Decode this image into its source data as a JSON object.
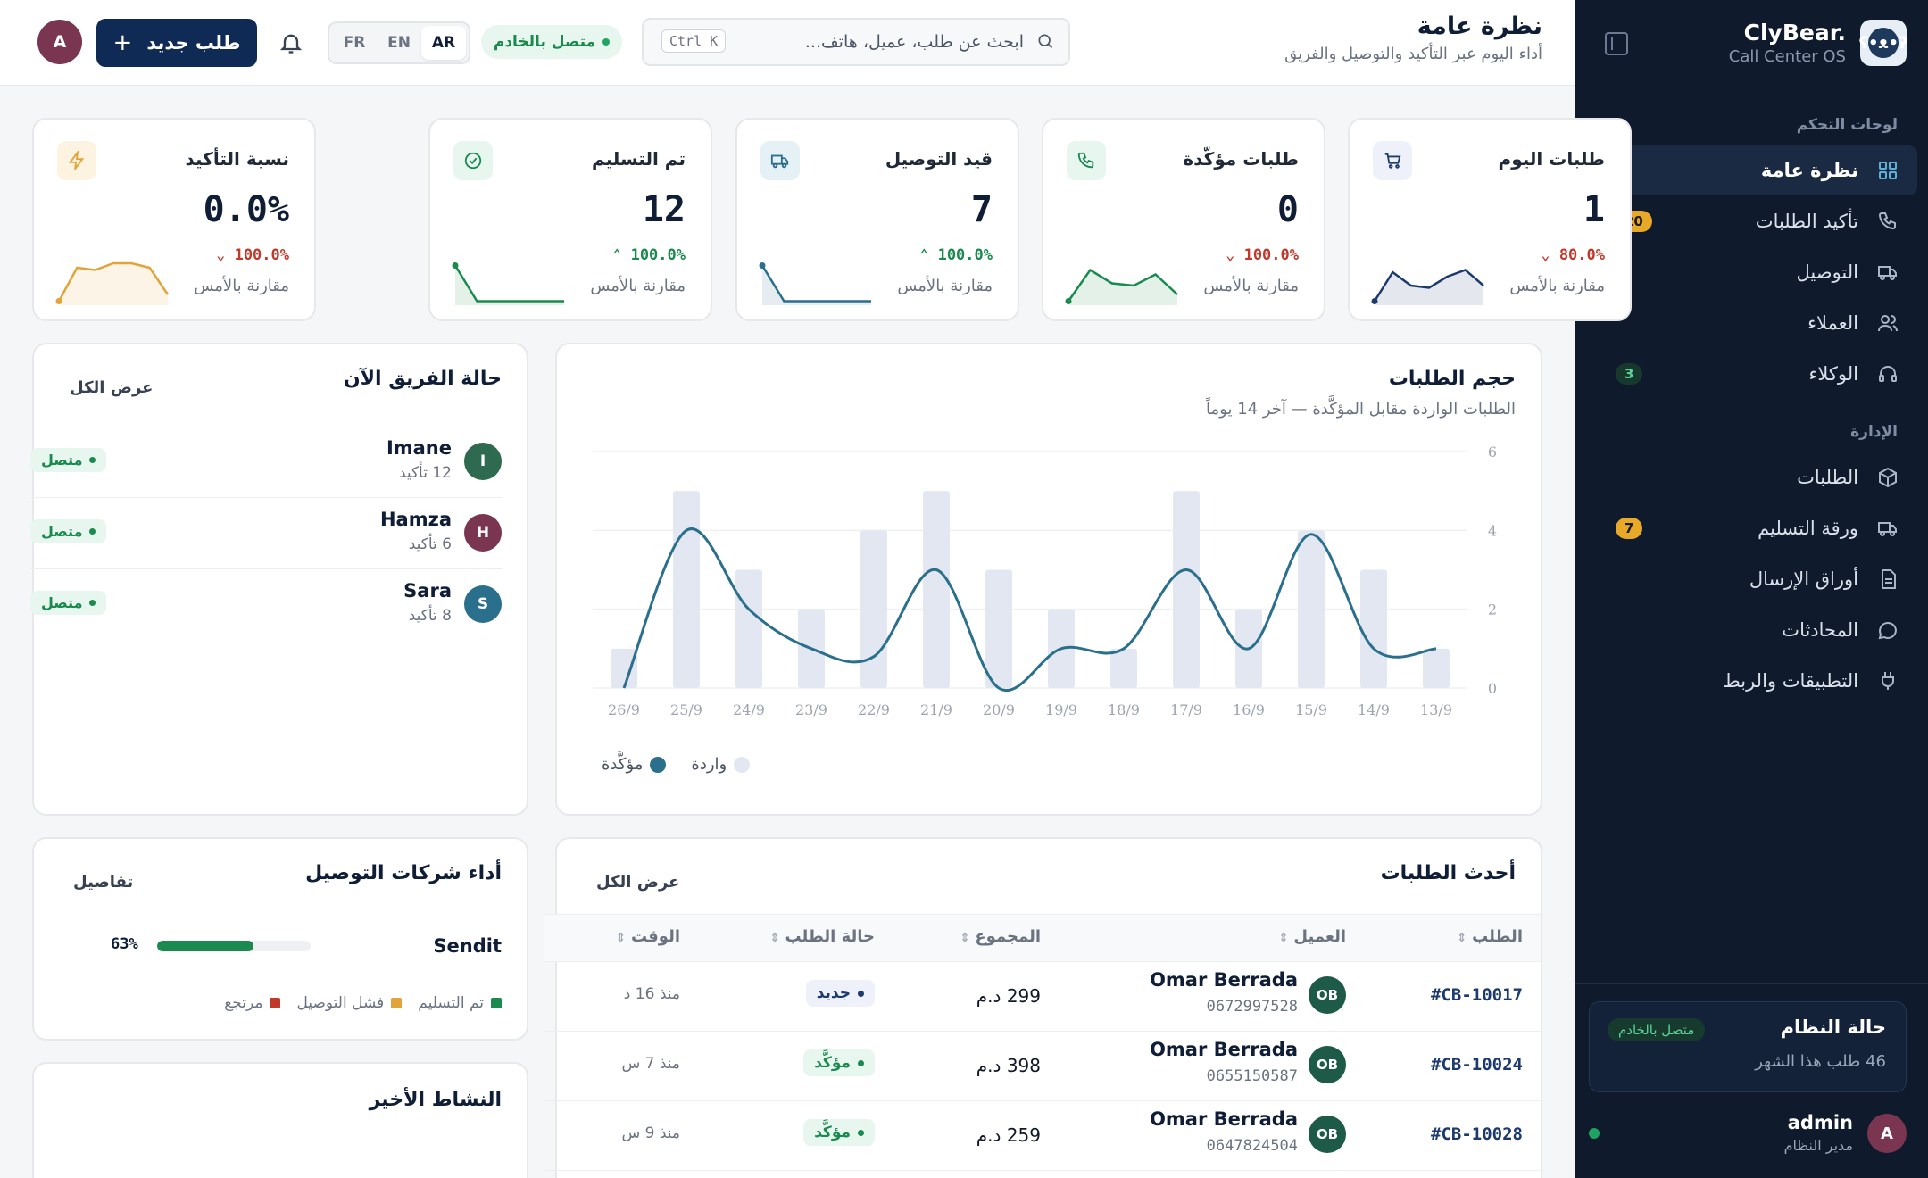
{
  "sidebar": {
    "brand_name": "ClyBear.",
    "brand_sub": "Call Center OS",
    "section_dashboards": "لوحات التحكم",
    "section_admin": "الإدارة",
    "items": [
      {
        "label": "نظرة عامة",
        "icon": "grid-icon"
      },
      {
        "label": "تأكيد الطلبات",
        "icon": "phone-icon",
        "badge": "20"
      },
      {
        "label": "التوصيل",
        "icon": "truck-icon"
      },
      {
        "label": "العملاء",
        "icon": "users-icon"
      },
      {
        "label": "الوكلاء",
        "icon": "headset-icon",
        "badge": "3"
      },
      {
        "label": "الطلبات",
        "icon": "box-icon"
      },
      {
        "label": "ورقة التسليم",
        "icon": "truck-icon",
        "badge": "7"
      },
      {
        "label": "أوراق الإرسال",
        "icon": "file-icon"
      },
      {
        "label": "المحادثات",
        "icon": "chat-icon"
      },
      {
        "label": "التطبيقات والربط",
        "icon": "plug-icon"
      }
    ],
    "system": {
      "title": "حالة النظام",
      "pill": "متصل بالخادم",
      "sub": "46 طلب هذا الشهر"
    },
    "user": {
      "initial": "A",
      "name": "admin",
      "role": "مدير النظام"
    }
  },
  "header": {
    "title": "نظرة عامة",
    "subtitle": "أداء اليوم عبر التأكيد والتوصيل والفريق",
    "search_placeholder": "ابحث عن طلب، عميل، هاتف...",
    "search_kbd": "Ctrl K",
    "connection": "متصل بالخادم",
    "langs": [
      "FR",
      "EN",
      "AR"
    ],
    "lang_selected": "AR",
    "new_order": "طلب جديد",
    "avatar": "A"
  },
  "kpis": [
    {
      "title": "طلبات اليوم",
      "value": "1",
      "delta": "80.0%",
      "direction": "down",
      "compare": "مقارنة بالأمس",
      "icon": "cart-icon",
      "color": "#1d3a6e",
      "spark": [
        0.05,
        0.7,
        0.4,
        0.35,
        0.6,
        0.75,
        0.4
      ]
    },
    {
      "title": "طلبات مؤكّدة",
      "value": "0",
      "delta": "100.0%",
      "direction": "down",
      "compare": "مقارنة بالأمس",
      "icon": "phone-icon",
      "color": "#1a8a4e",
      "spark": [
        0.05,
        0.75,
        0.45,
        0.4,
        0.65,
        0.2
      ]
    },
    {
      "title": "قيد التوصيل",
      "value": "7",
      "delta": "100.0%",
      "direction": "up",
      "compare": "مقارنة بالأمس",
      "icon": "truck-icon",
      "color": "#2a6f8c",
      "spark": [
        0.85,
        0.05,
        0.05,
        0.05,
        0.05,
        0.05
      ]
    },
    {
      "title": "تم التسليم",
      "value": "12",
      "delta": "100.0%",
      "direction": "up",
      "compare": "مقارنة بالأمس",
      "icon": "check-circle-icon",
      "color": "#1a8a4e",
      "spark": [
        0.85,
        0.05,
        0.05,
        0.05,
        0.05,
        0.05
      ]
    },
    {
      "title": "نسبة التأكيد",
      "value": "0.0%",
      "delta": "100.0%",
      "direction": "down",
      "compare": "مقارنة بالأمس",
      "icon": "bolt-icon",
      "color": "#e0a43a",
      "spark": [
        0.05,
        0.8,
        0.75,
        0.9,
        0.9,
        0.8,
        0.2
      ]
    }
  ],
  "team": {
    "title": "حالة الفريق الآن",
    "link": "عرض الكل",
    "members": [
      {
        "initial": "I",
        "name": "Imane",
        "sub": "12 تأكيد",
        "status": "متصل",
        "color": "#2d6a4f"
      },
      {
        "initial": "H",
        "name": "Hamza",
        "sub": "6 تأكيد",
        "status": "متصل",
        "color": "#7a3550"
      },
      {
        "initial": "S",
        "name": "Sara",
        "sub": "8 تأكيد",
        "status": "متصل",
        "color": "#2a6f8c"
      }
    ]
  },
  "volume": {
    "title": "حجم الطلبات",
    "subtitle": "الطلبات الواردة مقابل المؤكَّدة — آخر 14 يوماً"
  },
  "chart_data": {
    "type": "bar",
    "categories": [
      "13/9",
      "14/9",
      "15/9",
      "16/9",
      "17/9",
      "18/9",
      "19/9",
      "20/9",
      "21/9",
      "22/9",
      "23/9",
      "24/9",
      "25/9",
      "26/9"
    ],
    "series": [
      {
        "name": "واردة",
        "type": "bar",
        "color": "#e2e7f1",
        "values": [
          1,
          3,
          4,
          2,
          5,
          1,
          2,
          3,
          5,
          4,
          2,
          3,
          5,
          1
        ]
      },
      {
        "name": "مؤكَّدة",
        "type": "line",
        "color": "#2a6f8c",
        "values": [
          1,
          1,
          3.9,
          1,
          3,
          1,
          1,
          0,
          3,
          0.8,
          1,
          2,
          4,
          0
        ]
      }
    ],
    "ylim": [
      0,
      6
    ],
    "yticks": [
      0,
      2,
      4,
      6
    ],
    "legend_position": "bottom-left"
  },
  "couriers": {
    "title": "أداء شركات التوصيل",
    "link": "تفاصيل",
    "items": [
      {
        "name": "Sendit",
        "percent": "63%",
        "fill": 0.63
      }
    ],
    "legend": [
      {
        "label": "تم التسليم",
        "color": "#1a8a4e"
      },
      {
        "label": "فشل التوصيل",
        "color": "#e0a43a"
      },
      {
        "label": "مرتجع",
        "color": "#c0392b"
      }
    ]
  },
  "activity": {
    "title": "النشاط الأخير"
  },
  "orders": {
    "title": "أحدث الطلبات",
    "link": "عرض الكل",
    "columns": [
      "الطلب",
      "العميل",
      "المجموع",
      "حالة الطلب",
      "الوقت"
    ],
    "rows": [
      {
        "id": "#CB-10017",
        "initials": "OB",
        "name": "Omar Berrada",
        "phone": "0672997528",
        "total": "299 د.م",
        "status": "جديد",
        "status_kind": "new",
        "time": "منذ 16 د"
      },
      {
        "id": "#CB-10024",
        "initials": "OB",
        "name": "Omar Berrada",
        "phone": "0655150587",
        "total": "398 د.م",
        "status": "مؤكَّد",
        "status_kind": "conf",
        "time": "منذ 7 س"
      },
      {
        "id": "#CB-10028",
        "initials": "OB",
        "name": "Omar Berrada",
        "phone": "0647824504",
        "total": "259 د.م",
        "status": "مؤكَّد",
        "status_kind": "conf",
        "time": "منذ 9 س"
      }
    ]
  }
}
